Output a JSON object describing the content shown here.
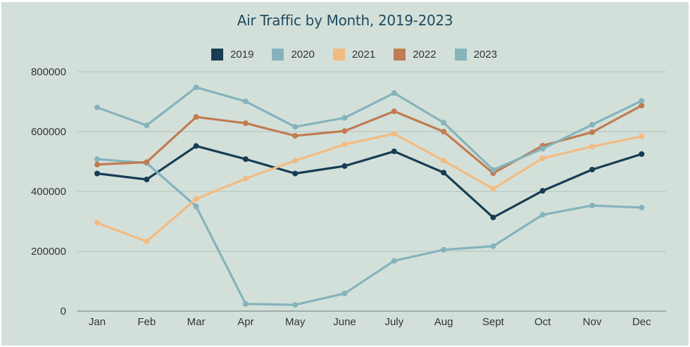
{
  "chart_data": {
    "type": "line",
    "title": "Air Traffic by Month, 2019-2023",
    "xlabel": "",
    "ylabel": "",
    "categories": [
      "Jan",
      "Feb",
      "Mar",
      "Apr",
      "May",
      "June",
      "July",
      "Aug",
      "Sept",
      "Oct",
      "Nov",
      "Dec"
    ],
    "ylim": [
      0,
      800000
    ],
    "yticks": [
      0,
      200000,
      400000,
      600000,
      800000
    ],
    "ytick_labels": [
      "0",
      "200000",
      "400000",
      "600000",
      "800000"
    ],
    "grid": true,
    "legend_position": "top-center",
    "series": [
      {
        "name": "2019",
        "color": "#173d52",
        "values": [
          460000,
          440000,
          552000,
          508000,
          460000,
          485000,
          534000,
          463000,
          313000,
          402000,
          473000,
          525000
        ]
      },
      {
        "name": "2020",
        "color": "#85b3bb",
        "values": [
          508000,
          495000,
          350000,
          24000,
          21000,
          59000,
          168000,
          205000,
          217000,
          322000,
          353000,
          346000
        ]
      },
      {
        "name": "2021",
        "color": "#f2bb82",
        "values": [
          295000,
          233000,
          375000,
          443000,
          503000,
          557000,
          593000,
          503000,
          409000,
          511000,
          550000,
          584000
        ]
      },
      {
        "name": "2022",
        "color": "#c17c52",
        "values": [
          490000,
          498000,
          649000,
          628000,
          586000,
          602000,
          668000,
          600000,
          461000,
          553000,
          598000,
          687000
        ]
      },
      {
        "name": "2023",
        "color": "#85b3bb",
        "values": [
          681000,
          621000,
          748000,
          701000,
          616000,
          646000,
          729000,
          630000,
          472000,
          543000,
          623000,
          703000
        ]
      }
    ]
  }
}
